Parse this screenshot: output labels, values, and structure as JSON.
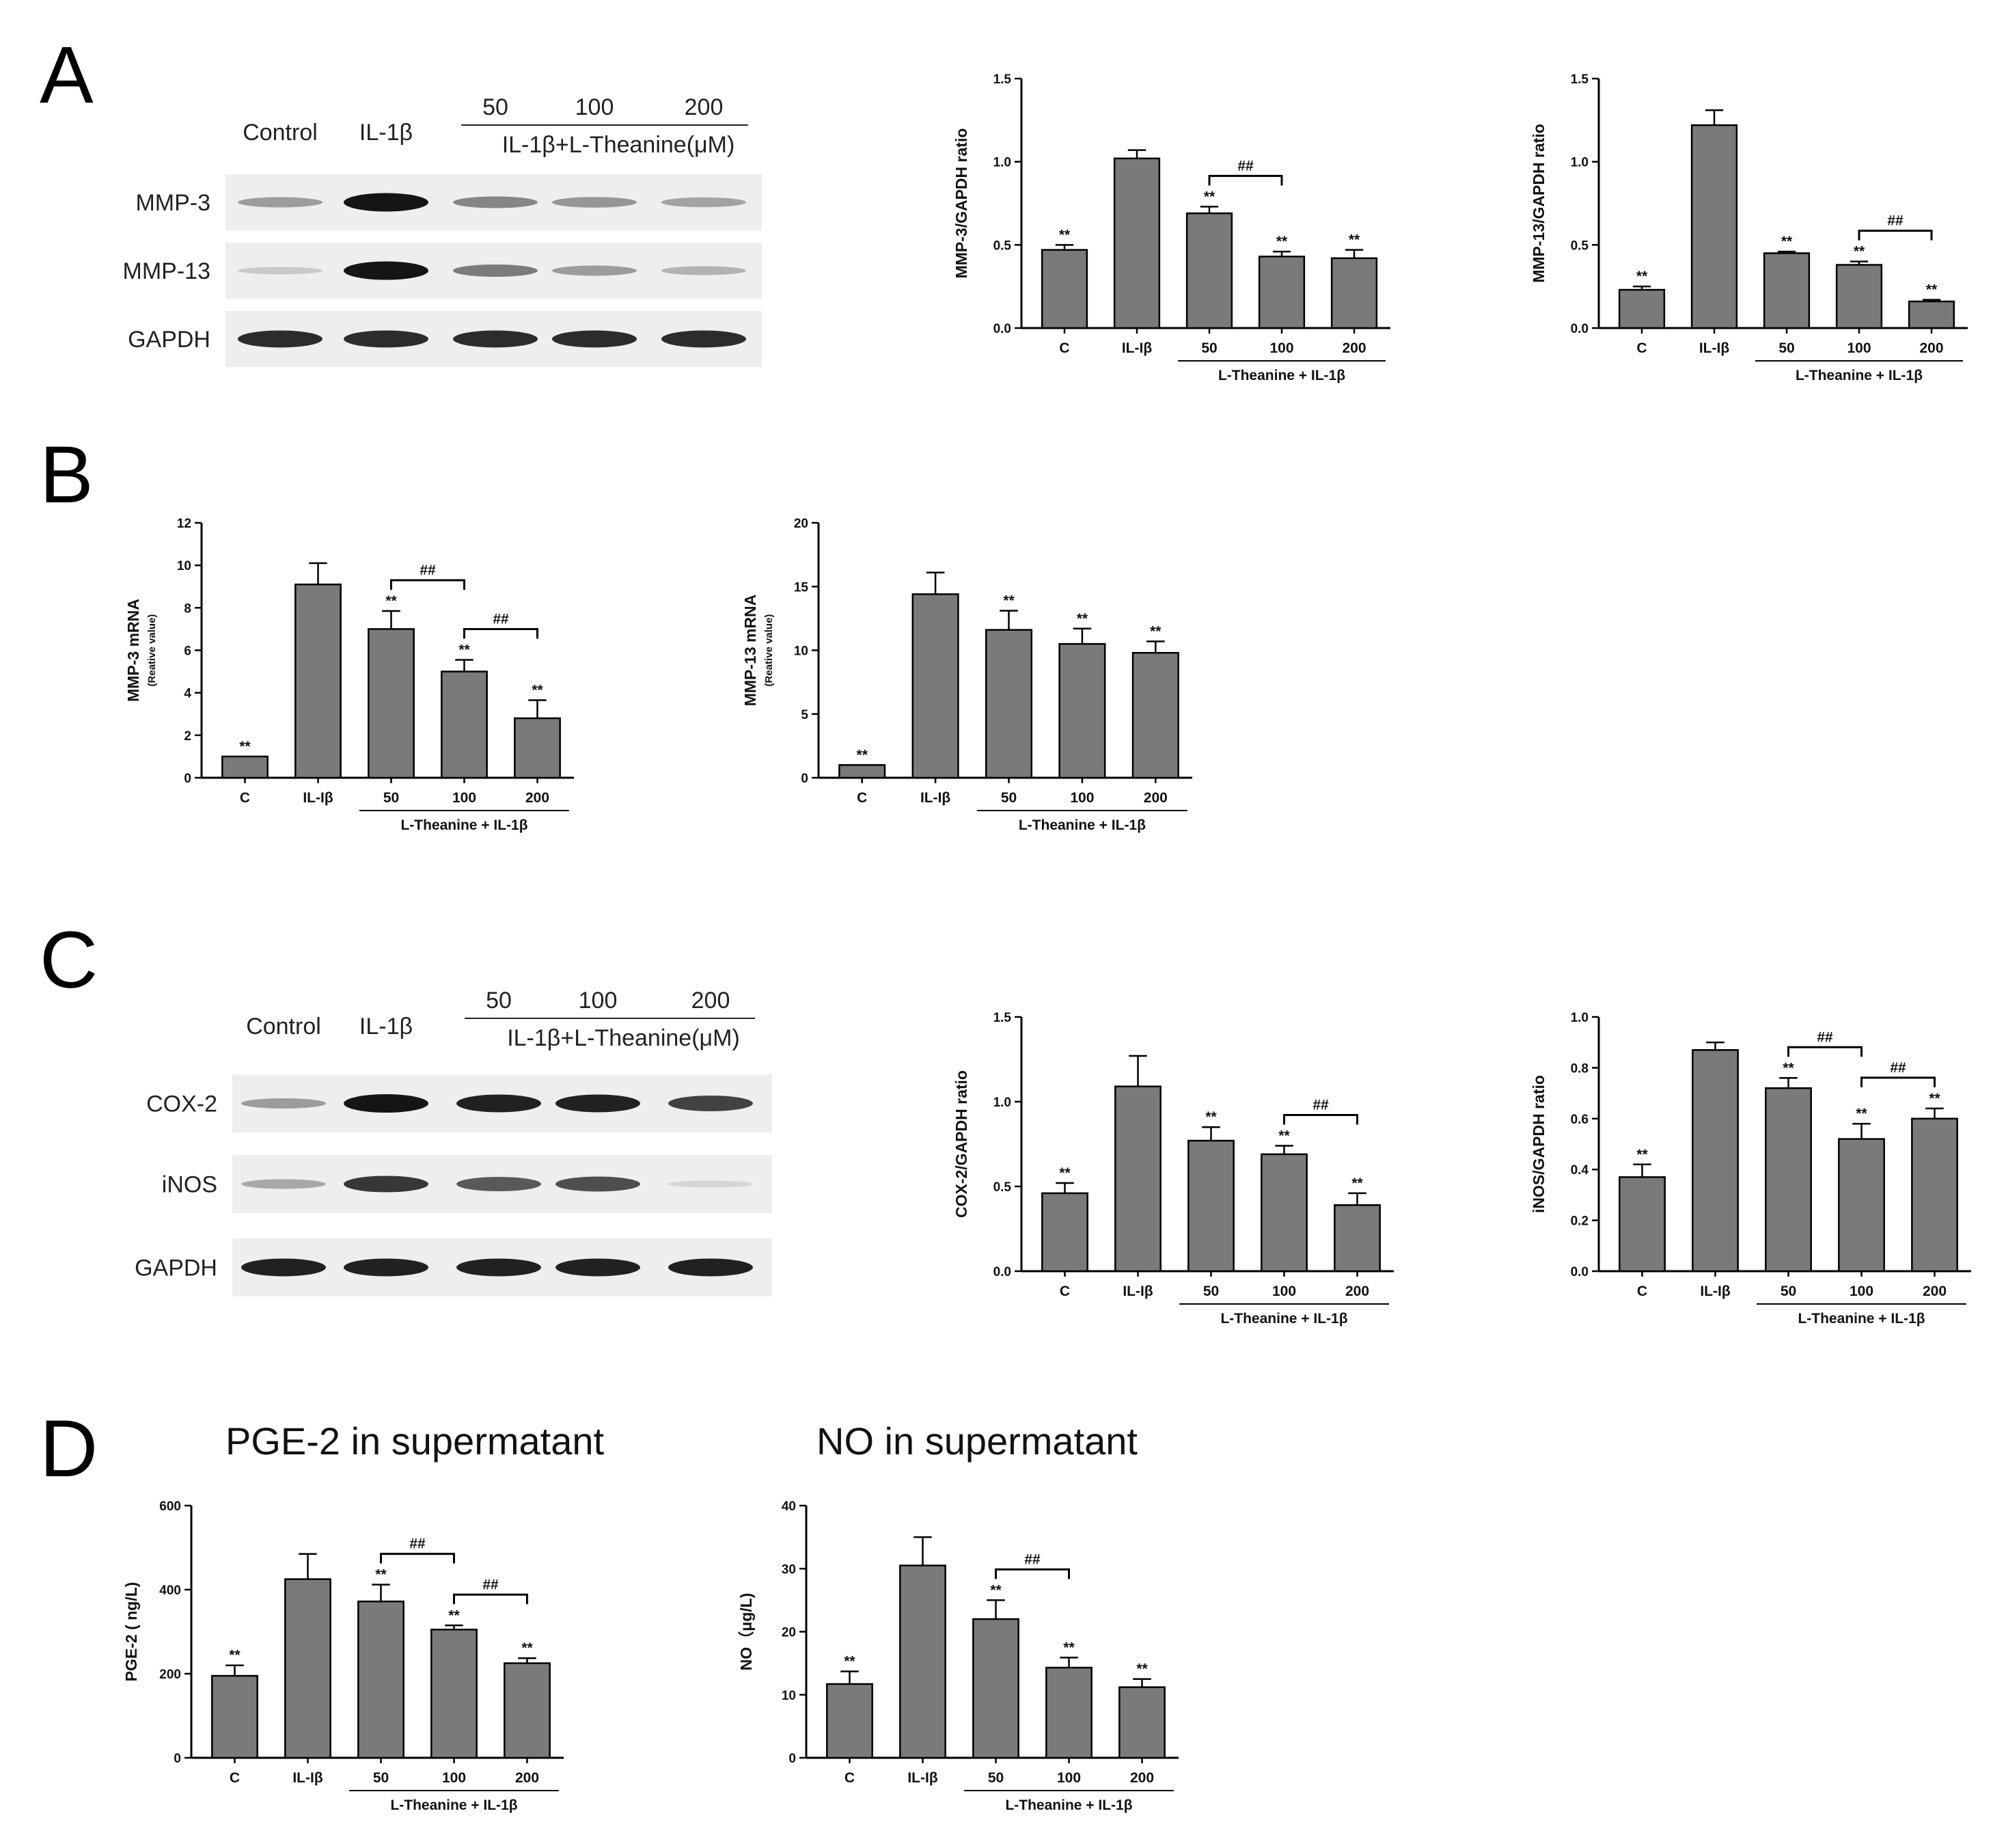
{
  "panels": {
    "A": {
      "letter": "A",
      "blot": {
        "lanes": [
          "Control",
          "IL-1β",
          "50",
          "100",
          "200"
        ],
        "group_label": "IL-1β+L-Theanine(μM)",
        "proteins": [
          {
            "name": "MMP-3",
            "intensity": [
              0.35,
              0.95,
              0.45,
              0.38,
              0.32
            ]
          },
          {
            "name": "MMP-13",
            "intensity": [
              0.15,
              0.95,
              0.5,
              0.35,
              0.25
            ]
          },
          {
            "name": "GAPDH",
            "intensity": [
              0.85,
              0.85,
              0.85,
              0.85,
              0.85
            ]
          }
        ]
      }
    },
    "B": {
      "letter": "B"
    },
    "C": {
      "letter": "C",
      "blot": {
        "lanes": [
          "Control",
          "IL-1β",
          "50",
          "100",
          "200"
        ],
        "group_label": "IL-1β+L-Theanine(μM)",
        "proteins": [
          {
            "name": "COX-2",
            "intensity": [
              0.35,
              0.95,
              0.9,
              0.9,
              0.75
            ]
          },
          {
            "name": "iNOS",
            "intensity": [
              0.3,
              0.8,
              0.65,
              0.7,
              0.1
            ]
          },
          {
            "name": "GAPDH",
            "intensity": [
              0.9,
              0.9,
              0.9,
              0.9,
              0.9
            ]
          }
        ]
      }
    },
    "D": {
      "letter": "D",
      "titles": [
        "PGE-2 in supermatant",
        "NO in supermatant"
      ]
    }
  },
  "chart_data": [
    {
      "id": "mmp3_protein",
      "type": "bar",
      "panel": "A",
      "categories": [
        "C",
        "IL-Iβ",
        "50",
        "100",
        "200"
      ],
      "values": [
        0.47,
        1.02,
        0.69,
        0.43,
        0.42
      ],
      "errors": [
        0.03,
        0.05,
        0.04,
        0.03,
        0.05
      ],
      "significance": [
        "**",
        "",
        "**",
        "**",
        "**"
      ],
      "ylabel": "MMP-3/GAPDH ratio",
      "ylabel_sub": "",
      "ylim": [
        0,
        1.5
      ],
      "yticks": [
        0.0,
        0.5,
        1.0,
        1.5
      ],
      "ytick_labels": [
        "0.0",
        "0.5",
        "1.0",
        "1.5"
      ],
      "group_label": "L-Theanine + IL-1β",
      "brackets": [
        {
          "from": 2,
          "to": 3,
          "label": "##"
        }
      ]
    },
    {
      "id": "mmp13_protein",
      "type": "bar",
      "panel": "A",
      "categories": [
        "C",
        "IL-Iβ",
        "50",
        "100",
        "200"
      ],
      "values": [
        0.23,
        1.22,
        0.45,
        0.38,
        0.16
      ],
      "errors": [
        0.02,
        0.09,
        0.01,
        0.02,
        0.01
      ],
      "significance": [
        "**",
        "",
        "**",
        "**",
        "**"
      ],
      "ylabel": "MMP-13/GAPDH ratio",
      "ylabel_sub": "",
      "ylim": [
        0,
        1.5
      ],
      "yticks": [
        0.0,
        0.5,
        1.0,
        1.5
      ],
      "ytick_labels": [
        "0.0",
        "0.5",
        "1.0",
        "1.5"
      ],
      "group_label": "L-Theanine + IL-1β",
      "brackets": [
        {
          "from": 3,
          "to": 4,
          "label": "##"
        }
      ]
    },
    {
      "id": "mmp3_mrna",
      "type": "bar",
      "panel": "B",
      "categories": [
        "C",
        "IL-Iβ",
        "50",
        "100",
        "200"
      ],
      "values": [
        1.0,
        9.1,
        7.0,
        5.0,
        2.8
      ],
      "errors": [
        0.0,
        1.0,
        0.85,
        0.55,
        0.85
      ],
      "significance": [
        "**",
        "",
        "**",
        "**",
        "**"
      ],
      "ylabel": "MMP-3 mRNA",
      "ylabel_sub": "(Reative value)",
      "ylim": [
        0,
        12
      ],
      "yticks": [
        0,
        2,
        4,
        6,
        8,
        10,
        12
      ],
      "ytick_labels": [
        "0",
        "2",
        "4",
        "6",
        "8",
        "10",
        "12"
      ],
      "group_label": "L-Theanine + IL-1β",
      "brackets": [
        {
          "from": 2,
          "to": 3,
          "label": "##"
        },
        {
          "from": 3,
          "to": 4,
          "label": "##"
        }
      ]
    },
    {
      "id": "mmp13_mrna",
      "type": "bar",
      "panel": "B",
      "categories": [
        "C",
        "IL-Iβ",
        "50",
        "100",
        "200"
      ],
      "values": [
        1.0,
        14.4,
        11.6,
        10.5,
        9.8
      ],
      "errors": [
        0.0,
        1.7,
        1.5,
        1.2,
        0.9
      ],
      "significance": [
        "**",
        "",
        "**",
        "**",
        "**"
      ],
      "ylabel": "MMP-13 mRNA",
      "ylabel_sub": "(Reative value)",
      "ylim": [
        0,
        20
      ],
      "yticks": [
        0,
        5,
        10,
        15,
        20
      ],
      "ytick_labels": [
        "0",
        "5",
        "10",
        "15",
        "20"
      ],
      "group_label": "L-Theanine + IL-1β",
      "brackets": []
    },
    {
      "id": "cox2_protein",
      "type": "bar",
      "panel": "C",
      "categories": [
        "C",
        "IL-Iβ",
        "50",
        "100",
        "200"
      ],
      "values": [
        0.46,
        1.09,
        0.77,
        0.69,
        0.39
      ],
      "errors": [
        0.06,
        0.18,
        0.08,
        0.05,
        0.07
      ],
      "significance": [
        "**",
        "",
        "**",
        "**",
        "**"
      ],
      "ylabel": "COX-2/GAPDH ratio",
      "ylabel_sub": "",
      "ylim": [
        0,
        1.5
      ],
      "yticks": [
        0.0,
        0.5,
        1.0,
        1.5
      ],
      "ytick_labels": [
        "0.0",
        "0.5",
        "1.0",
        "1.5"
      ],
      "group_label": "L-Theanine + IL-1β",
      "brackets": [
        {
          "from": 3,
          "to": 4,
          "label": "##"
        }
      ]
    },
    {
      "id": "inos_protein",
      "type": "bar",
      "panel": "C",
      "categories": [
        "C",
        "IL-Iβ",
        "50",
        "100",
        "200"
      ],
      "values": [
        0.37,
        0.87,
        0.72,
        0.52,
        0.6
      ],
      "errors": [
        0.05,
        0.03,
        0.04,
        0.06,
        0.04
      ],
      "significance": [
        "**",
        "",
        "**",
        "**",
        "**"
      ],
      "ylabel": "iNOS/GAPDH ratio",
      "ylabel_sub": "",
      "ylim": [
        0,
        1.0
      ],
      "yticks": [
        0.0,
        0.2,
        0.4,
        0.6,
        0.8,
        1.0
      ],
      "ytick_labels": [
        "0.0",
        "0.2",
        "0.4",
        "0.6",
        "0.8",
        "1.0"
      ],
      "group_label": "L-Theanine + IL-1β",
      "brackets": [
        {
          "from": 2,
          "to": 3,
          "label": "##"
        },
        {
          "from": 3,
          "to": 4,
          "label": "##"
        }
      ]
    },
    {
      "id": "pge2",
      "type": "bar",
      "panel": "D",
      "categories": [
        "C",
        "IL-Iβ",
        "50",
        "100",
        "200"
      ],
      "values": [
        195,
        425,
        372,
        305,
        225
      ],
      "errors": [
        25,
        60,
        40,
        10,
        12
      ],
      "significance": [
        "**",
        "",
        "**",
        "**",
        "**"
      ],
      "ylabel": "PGE-2 ( ng/L)",
      "ylabel_sub": "",
      "ylim": [
        0,
        600
      ],
      "yticks": [
        0,
        200,
        400,
        600
      ],
      "ytick_labels": [
        "0",
        "200",
        "400",
        "600"
      ],
      "group_label": "L-Theanine + IL-1β",
      "brackets": [
        {
          "from": 2,
          "to": 3,
          "label": "##"
        },
        {
          "from": 3,
          "to": 4,
          "label": "##"
        }
      ]
    },
    {
      "id": "no",
      "type": "bar",
      "panel": "D",
      "categories": [
        "C",
        "IL-Iβ",
        "50",
        "100",
        "200"
      ],
      "values": [
        11.7,
        30.5,
        22.0,
        14.3,
        11.2
      ],
      "errors": [
        2.0,
        4.5,
        3.0,
        1.6,
        1.3
      ],
      "significance": [
        "**",
        "",
        "**",
        "**",
        "**"
      ],
      "ylabel": "NO（μg/L)",
      "ylabel_sub": "",
      "ylim": [
        0,
        40
      ],
      "yticks": [
        0,
        10,
        20,
        30,
        40
      ],
      "ytick_labels": [
        "0",
        "10",
        "20",
        "30",
        "40"
      ],
      "group_label": "L-Theanine + IL-1β",
      "brackets": [
        {
          "from": 2,
          "to": 3,
          "label": "##"
        }
      ]
    }
  ]
}
